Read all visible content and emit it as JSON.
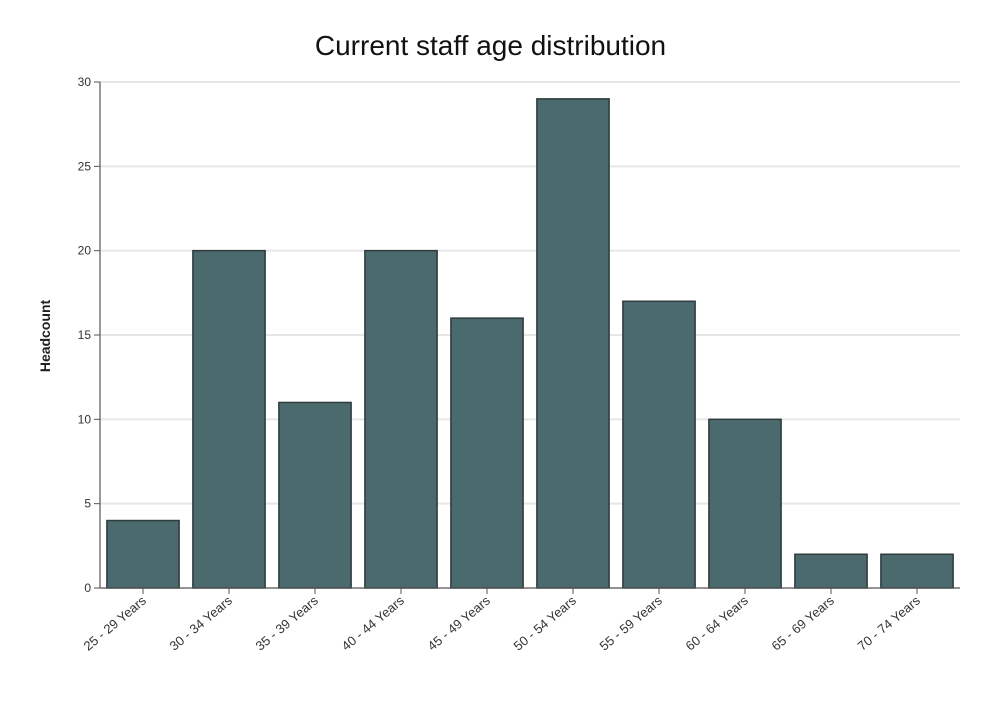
{
  "chart_data": {
    "type": "bar",
    "title": "Current staff age distribution",
    "xlabel": "",
    "ylabel": "Headcount",
    "categories": [
      "25 - 29 Years",
      "30 - 34 Years",
      "35 - 39 Years",
      "40 - 44 Years",
      "45 - 49 Years",
      "50 - 54 Years",
      "55 - 59 Years",
      "60 - 64 Years",
      "65 - 69 Years",
      "70 - 74 Years"
    ],
    "values": [
      4,
      20,
      11,
      20,
      16,
      29,
      17,
      10,
      2,
      2
    ],
    "ylim": [
      0,
      30
    ],
    "yticks": [
      0,
      5,
      10,
      15,
      20,
      25,
      30
    ],
    "grid": true,
    "bar_color": "#4a6a6e",
    "bar_edge_color": "#2f3b3d"
  }
}
